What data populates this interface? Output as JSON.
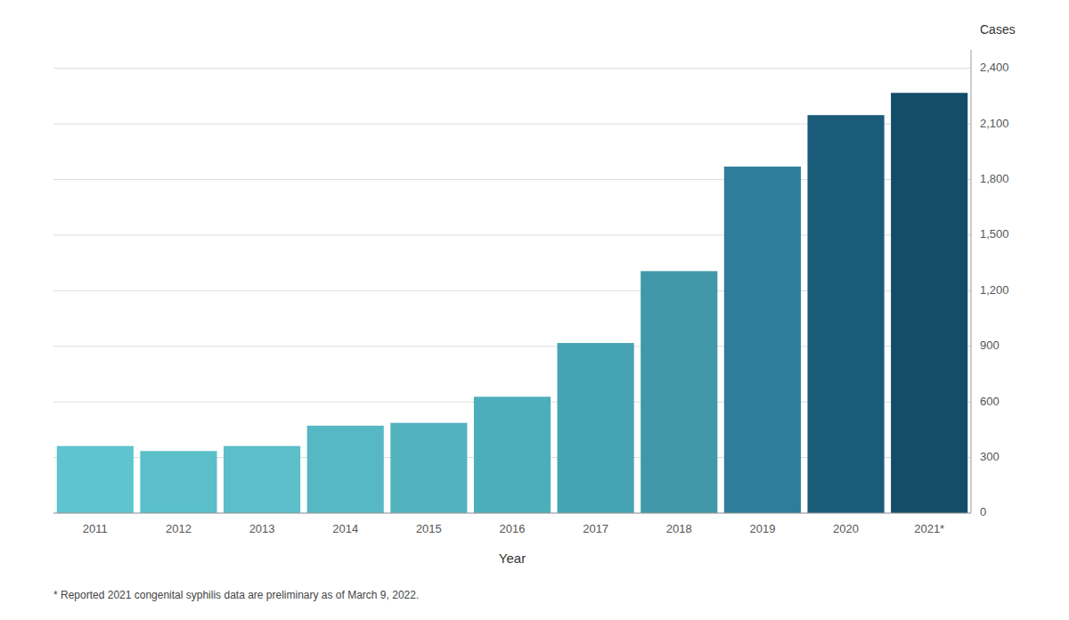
{
  "chart_data": {
    "type": "bar",
    "categories": [
      "2011",
      "2012",
      "2013",
      "2014",
      "2015",
      "2016",
      "2017",
      "2018",
      "2019",
      "2020",
      "2021*"
    ],
    "values": [
      362,
      335,
      362,
      472,
      487,
      628,
      918,
      1306,
      1870,
      2148,
      2268
    ],
    "colors": [
      "#5ec4d0",
      "#5abfc9",
      "#5bbec9",
      "#56b8c4",
      "#52b3bf",
      "#4daebb",
      "#46a3b3",
      "#4098a8",
      "#2e7d9a",
      "#1a5c7a",
      "#134d68"
    ],
    "xlabel": "Year",
    "ylabel": "Cases",
    "annotations": [
      "* Reported 2021 congenital syphilis data are preliminary as of March 9, 2022."
    ],
    "ylim": [
      0,
      2500
    ],
    "yticks": [
      0,
      300,
      600,
      900,
      {
        "value": 1200,
        "label": "1,200"
      },
      {
        "value": 1500,
        "label": "1,500"
      },
      {
        "value": 1800,
        "label": "1,800"
      },
      {
        "value": 2100,
        "label": "2,100"
      },
      {
        "value": 2400,
        "label": "2,400"
      }
    ],
    "grid": true
  }
}
